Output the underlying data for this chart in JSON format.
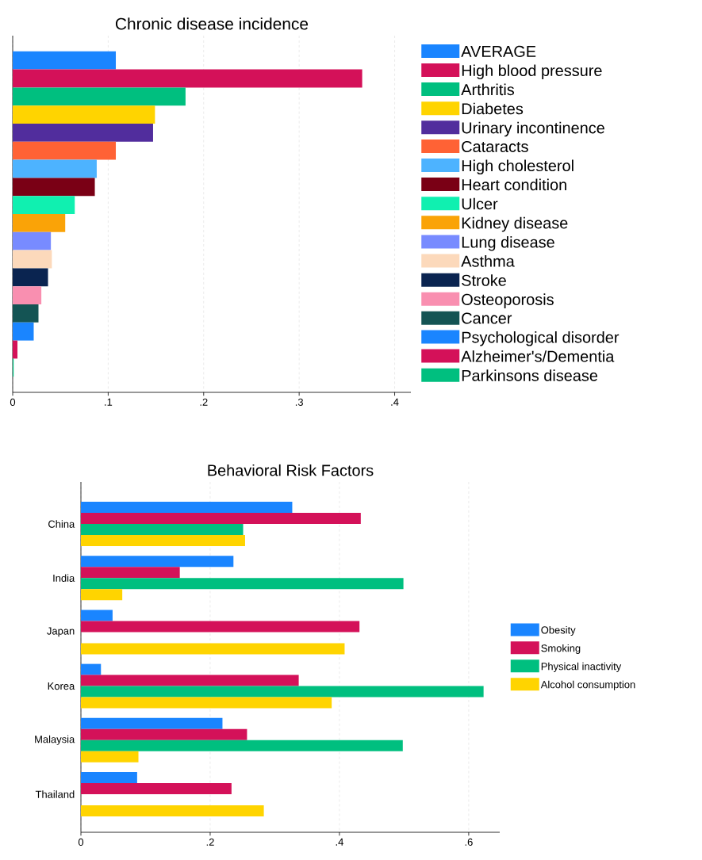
{
  "chart_data": [
    {
      "type": "bar",
      "orientation": "horizontal",
      "title": "Chronic disease incidence",
      "categories": [
        null
      ],
      "xlim": [
        0,
        0.417
      ],
      "xticks": [
        0,
        {
          "value": 0.1,
          "label": ".1"
        },
        {
          "value": 0.2,
          "label": ".2"
        },
        {
          "value": 0.3,
          "label": ".3"
        },
        {
          "value": 0.4,
          "label": ".4"
        }
      ],
      "grid": "x",
      "legend": "right",
      "series": [
        {
          "name": "AVERAGE",
          "color": "#1a85ff",
          "values": [
            0.108
          ]
        },
        {
          "name": "High blood pressure",
          "color": "#d41159",
          "values": [
            0.366
          ]
        },
        {
          "name": "Arthritis",
          "color": "#00bf7f",
          "values": [
            0.181
          ]
        },
        {
          "name": "Diabetes",
          "color": "#ffd400",
          "values": [
            0.149
          ]
        },
        {
          "name": "Urinary incontinence",
          "color": "#512d9d",
          "values": [
            0.147
          ]
        },
        {
          "name": "Cataracts",
          "color": "#ff6235",
          "values": [
            0.108
          ]
        },
        {
          "name": "High cholesterol",
          "color": "#4db3ff",
          "values": [
            0.088
          ]
        },
        {
          "name": "Heart condition",
          "color": "#7a0015",
          "values": [
            0.086
          ]
        },
        {
          "name": "Ulcer",
          "color": "#10f0b0",
          "values": [
            0.065
          ]
        },
        {
          "name": "Kidney disease",
          "color": "#faa307",
          "values": [
            0.055
          ]
        },
        {
          "name": "Lung disease",
          "color": "#788bff",
          "values": [
            0.04
          ]
        },
        {
          "name": "Asthma",
          "color": "#fcd9bb",
          "values": [
            0.041
          ]
        },
        {
          "name": "Stroke",
          "color": "#0a2450",
          "values": [
            0.037
          ]
        },
        {
          "name": "Osteoporosis",
          "color": "#f98fb0",
          "values": [
            0.03
          ]
        },
        {
          "name": "Cancer",
          "color": "#145454",
          "values": [
            0.027
          ]
        },
        {
          "name": "Psychological disorder",
          "color": "#1a85ff",
          "values": [
            0.022
          ]
        },
        {
          "name": "Alzheimer's/Dementia",
          "color": "#d41159",
          "values": [
            0.005
          ]
        },
        {
          "name": "Parkinsons disease",
          "color": "#00bf7f",
          "values": [
            0.001
          ]
        }
      ]
    },
    {
      "type": "bar",
      "orientation": "horizontal",
      "title": "Behavioral Risk Factors",
      "categories": [
        "China",
        "India",
        "Japan",
        "Korea",
        "Malaysia",
        "Thailand"
      ],
      "xlim": [
        0,
        0.648
      ],
      "xticks": [
        0,
        {
          "value": 0.2,
          "label": ".2"
        },
        {
          "value": 0.4,
          "label": ".4"
        },
        {
          "value": 0.6,
          "label": ".6"
        }
      ],
      "grid": "x",
      "legend": "right",
      "series": [
        {
          "name": "Obesity",
          "color": "#1a85ff",
          "values": [
            0.327,
            0.236,
            0.049,
            0.031,
            0.219,
            0.087
          ]
        },
        {
          "name": "Smoking",
          "color": "#d41159",
          "values": [
            0.433,
            0.153,
            0.431,
            0.337,
            0.257,
            0.233
          ]
        },
        {
          "name": "Physical inactivity",
          "color": "#00bf7f",
          "values": [
            0.251,
            0.499,
            null,
            0.623,
            0.498,
            null
          ]
        },
        {
          "name": "Alcohol consumption",
          "color": "#ffd400",
          "values": [
            0.254,
            0.064,
            0.408,
            0.388,
            0.089,
            0.283
          ]
        }
      ]
    }
  ]
}
